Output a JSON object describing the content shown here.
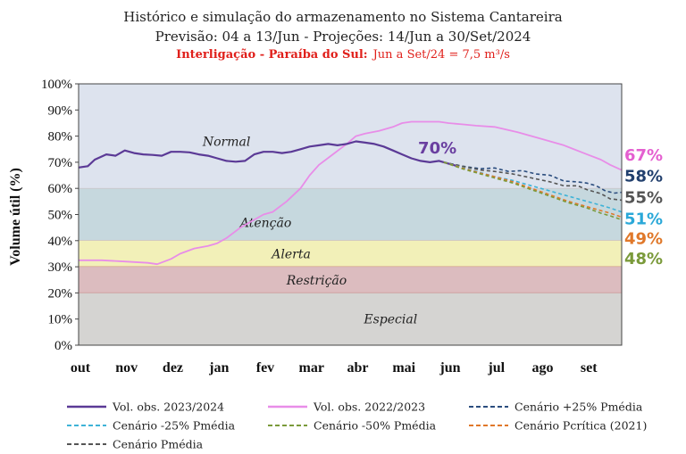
{
  "chart_data": {
    "type": "line",
    "title_lines": [
      "Histórico e simulação do armazenamento no Sistema Cantareira",
      "Previsão: 04 a 13/Jun -  Projeções: 14/Jun a 30/Set/2024"
    ],
    "subtitle_bold": "Interligação - Paraíba do Sul:",
    "subtitle_rest": "Jun a Set/24 = 7,5 m³/s",
    "ylabel": "Volume útil (%)",
    "ylim": [
      0,
      100
    ],
    "yticks": [
      "0%",
      "10%",
      "20%",
      "30%",
      "40%",
      "50%",
      "60%",
      "70%",
      "80%",
      "90%",
      "100%"
    ],
    "xlim": [
      0,
      11.75
    ],
    "xticks": [
      "out",
      "nov",
      "dez",
      "jan",
      "fev",
      "mar",
      "abr",
      "mai",
      "jun",
      "jul",
      "ago",
      "set"
    ],
    "zones": [
      {
        "label": "Normal",
        "from": 60,
        "to": 100,
        "color": "#dde3ee"
      },
      {
        "label": "Atenção",
        "from": 40,
        "to": 60,
        "color": "#c6d8de"
      },
      {
        "label": "Alerta",
        "from": 30,
        "to": 40,
        "color": "#f2f0b8"
      },
      {
        "label": "Restrição",
        "from": 20,
        "to": 30,
        "color": "#dcbcbf"
      },
      {
        "label": "Especial",
        "from": 0,
        "to": 20,
        "color": "#d5d4d2"
      }
    ],
    "annotation": {
      "text": "70%",
      "x": 7.8,
      "y": 70,
      "color": "#6a3fa0"
    },
    "series": [
      {
        "name": "Vol. obs. 2023/2024",
        "color": "#5b3a96",
        "dash": "",
        "width": 2.2,
        "x": [
          0,
          0.2,
          0.35,
          0.6,
          0.8,
          1.0,
          1.2,
          1.4,
          1.6,
          1.8,
          2.0,
          2.2,
          2.4,
          2.6,
          2.8,
          3.0,
          3.2,
          3.4,
          3.6,
          3.8,
          4.0,
          4.2,
          4.4,
          4.6,
          4.8,
          5.0,
          5.2,
          5.4,
          5.6,
          5.8,
          6.0,
          6.2,
          6.4,
          6.6,
          6.8,
          7.0,
          7.2,
          7.4,
          7.6,
          7.8,
          8.0,
          8.2
        ],
        "y": [
          68,
          68.5,
          71,
          73,
          72.5,
          74.5,
          73.5,
          73,
          72.8,
          72.5,
          74,
          74,
          73.8,
          73,
          72.5,
          71.5,
          70.5,
          70.2,
          70.5,
          73,
          74,
          74,
          73.5,
          74,
          75,
          76,
          76.5,
          77,
          76.5,
          77,
          78,
          77.5,
          77,
          76,
          74.5,
          73,
          71.5,
          70.5,
          70,
          70.5,
          69.5,
          68.5
        ]
      },
      {
        "name": "Vol. obs. 2022/2023",
        "color": "#e88de8",
        "dash": "",
        "width": 1.8,
        "x": [
          0,
          0.5,
          1.0,
          1.5,
          1.7,
          2.0,
          2.2,
          2.5,
          2.8,
          3.0,
          3.2,
          3.5,
          3.8,
          4.0,
          4.2,
          4.5,
          4.8,
          5.0,
          5.2,
          5.5,
          5.8,
          6.0,
          6.2,
          6.5,
          6.8,
          7.0,
          7.2,
          7.5,
          7.8,
          8.0,
          8.3,
          8.6,
          9.0,
          9.5,
          10.0,
          10.5,
          11.0,
          11.3,
          11.5,
          11.75
        ],
        "y": [
          32.5,
          32.5,
          32,
          31.5,
          31,
          33,
          35,
          37,
          38,
          39,
          41,
          45,
          48,
          50,
          51,
          55,
          60,
          65,
          69,
          73,
          77,
          80,
          81,
          82,
          83.5,
          85,
          85.5,
          85.5,
          85.5,
          85,
          84.5,
          84,
          83.5,
          81.5,
          79,
          76.5,
          73,
          71,
          69,
          67
        ]
      },
      {
        "name": "Cenário +25% Pmédia",
        "color": "#2b4d7e",
        "dash": "4,3",
        "width": 1.6,
        "x": [
          7.9,
          8.3,
          8.7,
          9.0,
          9.3,
          9.6,
          9.9,
          10.2,
          10.5,
          10.8,
          11.0,
          11.2,
          11.4,
          11.6,
          11.75
        ],
        "y": [
          70,
          68.5,
          67.5,
          67.8,
          66.5,
          66.8,
          65.5,
          65,
          62.8,
          62.5,
          62,
          61,
          59,
          58.2,
          58.5
        ]
      },
      {
        "name": "Cenário -25% Pmédia",
        "color": "#3eb3d7",
        "dash": "4,3",
        "width": 1.6,
        "x": [
          7.9,
          8.3,
          8.7,
          9.0,
          9.4,
          9.8,
          10.2,
          10.6,
          11.0,
          11.3,
          11.5,
          11.75
        ],
        "y": [
          70,
          68,
          66,
          64.5,
          63,
          61,
          59,
          57,
          55,
          53.5,
          52.5,
          51
        ]
      },
      {
        "name": "Cenário -50% Pmédia",
        "color": "#7a9a3a",
        "dash": "4,3",
        "width": 1.6,
        "x": [
          7.9,
          8.3,
          8.7,
          9.0,
          9.4,
          9.8,
          10.2,
          10.6,
          11.0,
          11.3,
          11.5,
          11.75
        ],
        "y": [
          70,
          67.5,
          65.5,
          64,
          62,
          59.5,
          57,
          54.5,
          52.5,
          50.5,
          49.5,
          48
        ]
      },
      {
        "name": "Cenário Pcrítica (2021)",
        "color": "#e0782a",
        "dash": "4,3",
        "width": 1.6,
        "x": [
          7.9,
          8.3,
          8.7,
          9.0,
          9.4,
          9.8,
          10.2,
          10.6,
          11.0,
          11.3,
          11.5,
          11.75
        ],
        "y": [
          70,
          67.8,
          65.8,
          64.5,
          62.5,
          60,
          57.5,
          55,
          53,
          51.5,
          50.5,
          49
        ]
      },
      {
        "name": "Cenário Pmédia",
        "color": "#555555",
        "dash": "4,3",
        "width": 1.6,
        "x": [
          7.9,
          8.3,
          8.7,
          9.0,
          9.4,
          9.8,
          10.2,
          10.5,
          10.8,
          11.0,
          11.3,
          11.5,
          11.75
        ],
        "y": [
          70,
          68.5,
          67,
          66.5,
          65.5,
          64,
          62.5,
          61,
          61,
          59.5,
          58,
          56,
          55.5
        ]
      }
    ],
    "end_labels": [
      {
        "text": "67%",
        "y": 73,
        "color": "#e45fd0"
      },
      {
        "text": "58%",
        "y": 65,
        "color": "#22406e"
      },
      {
        "text": "55%",
        "y": 56.8,
        "color": "#555555"
      },
      {
        "text": "51%",
        "y": 48.7,
        "color": "#2aa8d8"
      },
      {
        "text": "49%",
        "y": 41.2,
        "color": "#e0782a"
      },
      {
        "text": "48%",
        "y": 33.5,
        "color": "#7a9a3a"
      }
    ],
    "legend_position": "bottom"
  }
}
